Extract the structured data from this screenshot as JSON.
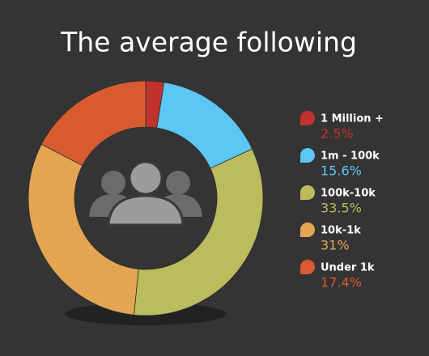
{
  "chart_data": {
    "type": "donut",
    "title": "The average following",
    "categories": [
      "1 Million +",
      "1m - 100k",
      "100k-10k",
      "10k-1k",
      "Under 1k"
    ],
    "values": [
      2.5,
      15.6,
      33.5,
      31,
      17.4
    ],
    "value_labels": [
      "2.5%",
      "15.6%",
      "33.5%",
      "31%",
      "17.4%"
    ],
    "colors": [
      "#c1322d",
      "#5cc6f4",
      "#bcbb5d",
      "#e3a552",
      "#d85a30"
    ]
  }
}
